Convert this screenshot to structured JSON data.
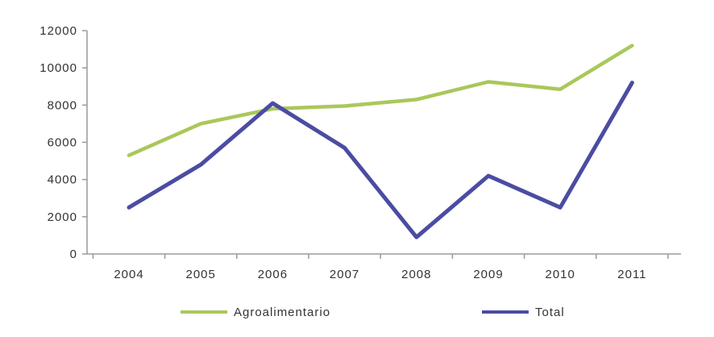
{
  "chart_data": {
    "type": "line",
    "title": "",
    "xlabel": "",
    "ylabel": "",
    "categories": [
      "2004",
      "2005",
      "2006",
      "2007",
      "2008",
      "2009",
      "2010",
      "2011"
    ],
    "ylim": [
      0,
      12000
    ],
    "yticks": [
      0,
      2000,
      4000,
      6000,
      8000,
      10000,
      12000
    ],
    "ytick_labels": [
      "0",
      "2000",
      "4000",
      "6000",
      "8000",
      "10000",
      "12000"
    ],
    "grid": false,
    "legend_position": "bottom",
    "series": [
      {
        "name": "Agroalimentario",
        "color": "#a9c85a",
        "values": [
          5300,
          7000,
          7800,
          7950,
          8300,
          9250,
          8850,
          11200
        ]
      },
      {
        "name": "Total",
        "color": "#4b4ca2",
        "values": [
          2500,
          4800,
          8100,
          5700,
          900,
          4200,
          2500,
          9200
        ]
      }
    ]
  }
}
